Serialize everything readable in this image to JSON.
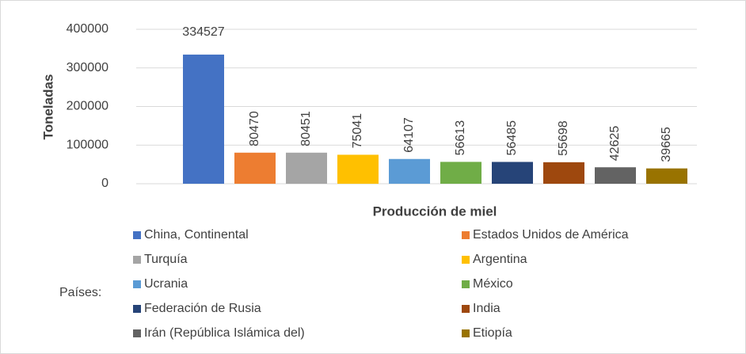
{
  "chart_data": {
    "type": "bar",
    "ylabel": "Toneladas",
    "categories": [
      "Producción de miel"
    ],
    "legend_title": "Países:",
    "series": [
      {
        "name": "China, Continental",
        "color": "#4472C4",
        "values": [
          334527
        ]
      },
      {
        "name": "Estados Unidos de América",
        "color": "#ED7D31",
        "values": [
          80470
        ]
      },
      {
        "name": "Turquía",
        "color": "#A5A5A5",
        "values": [
          80451
        ]
      },
      {
        "name": "Argentina",
        "color": "#FFC000",
        "values": [
          75041
        ]
      },
      {
        "name": "Ucrania",
        "color": "#5B9BD5",
        "values": [
          64107
        ]
      },
      {
        "name": "México",
        "color": "#70AD47",
        "values": [
          56613
        ]
      },
      {
        "name": "Federación de Rusia",
        "color": "#264478",
        "values": [
          56485
        ]
      },
      {
        "name": "India",
        "color": "#9E480E",
        "values": [
          55698
        ]
      },
      {
        "name": "Irán (República Islámica del)",
        "color": "#636363",
        "values": [
          42625
        ]
      },
      {
        "name": "Etiopía",
        "color": "#997300",
        "values": [
          39665
        ]
      }
    ],
    "ylim": [
      0,
      400000
    ],
    "yticks": [
      0,
      100000,
      200000,
      300000,
      400000
    ],
    "grid": true,
    "legend": "bottom"
  }
}
